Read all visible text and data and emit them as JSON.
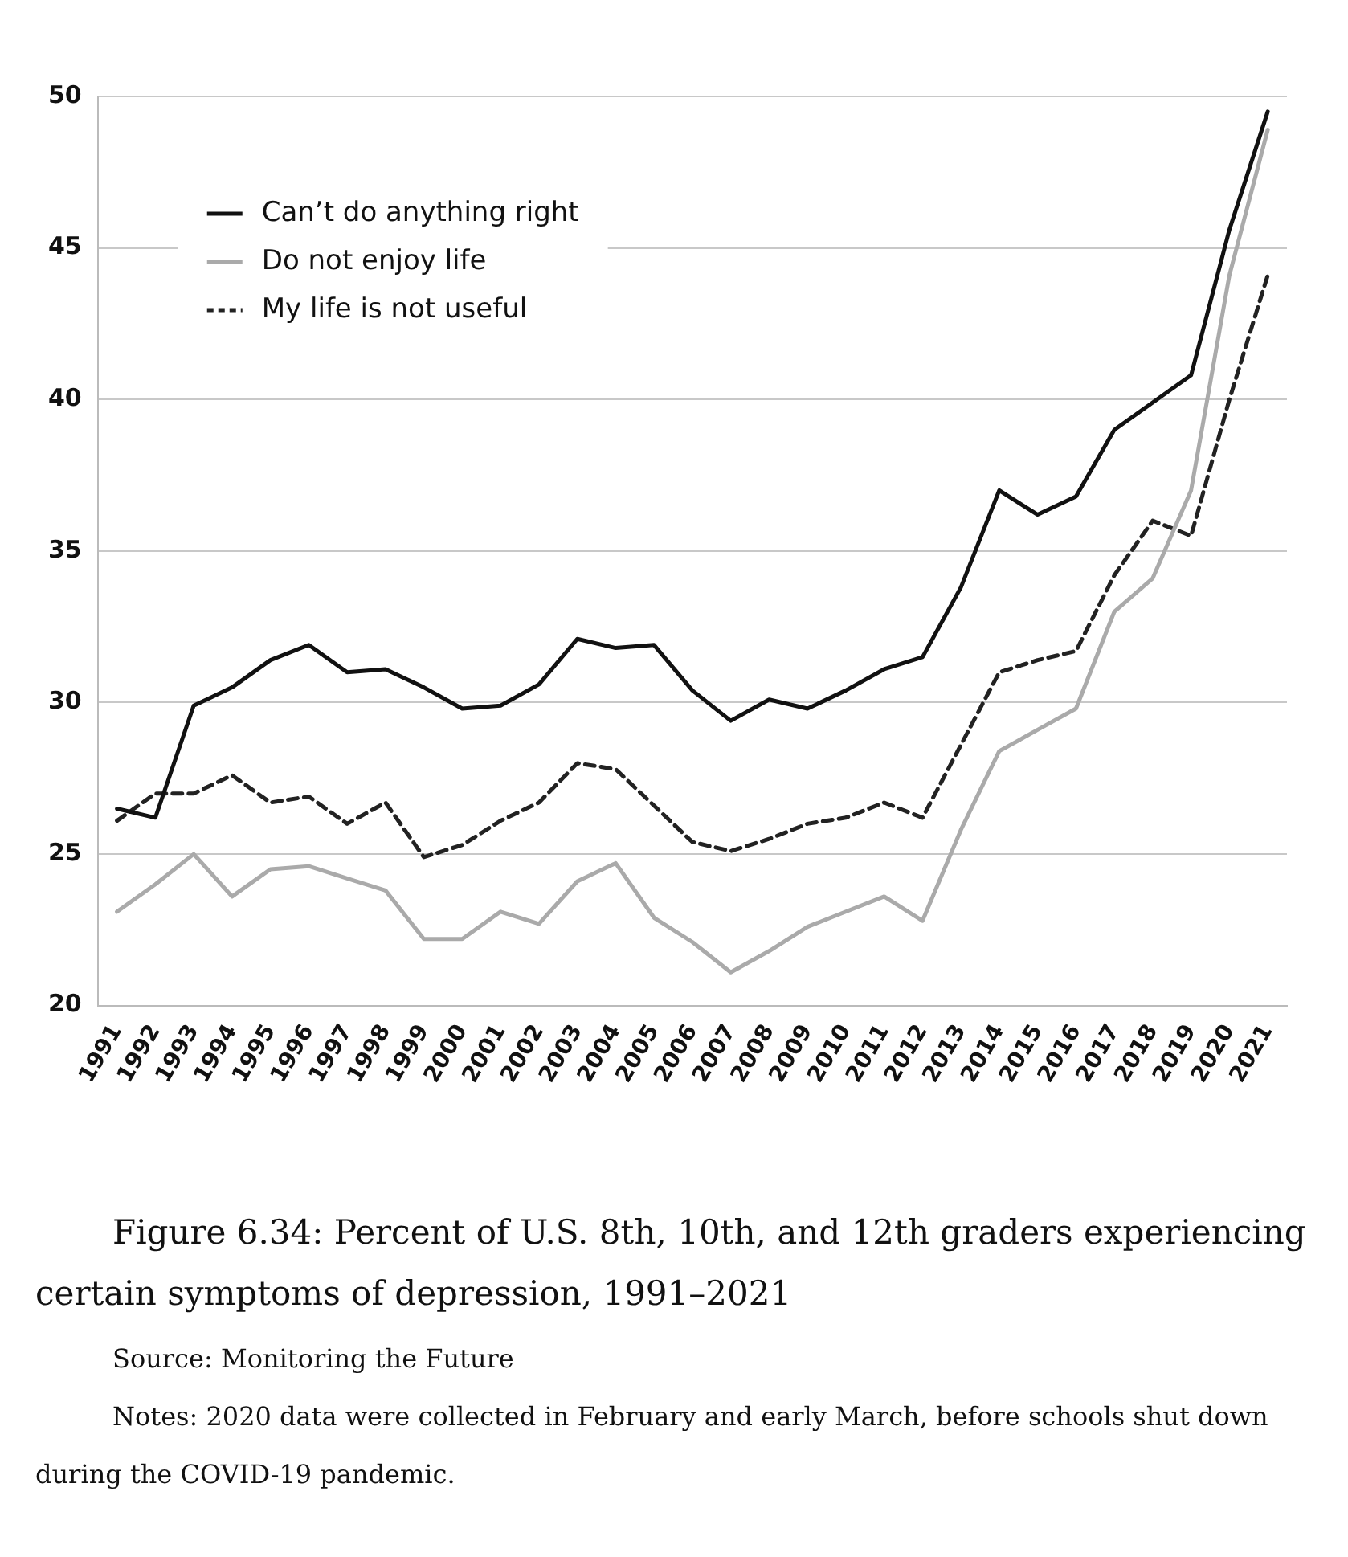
{
  "chart_data": {
    "type": "line",
    "title": "Figure 6.34: Percent of U.S. 8th, 10th, and 12th graders experiencing certain symptoms of depression, 1991–2021",
    "annotations": [
      "Source: Monitoring the Future",
      "Notes: 2020 data were collected in February and early March, before schools shut down during the COVID-19 pandemic."
    ],
    "categories": [
      "1991",
      "1992",
      "1993",
      "1994",
      "1995",
      "1996",
      "1997",
      "1998",
      "1999",
      "2000",
      "2001",
      "2002",
      "2003",
      "2004",
      "2005",
      "2006",
      "2007",
      "2008",
      "2009",
      "2010",
      "2011",
      "2012",
      "2013",
      "2014",
      "2015",
      "2016",
      "2017",
      "2018",
      "2019",
      "2020",
      "2021"
    ],
    "series": [
      {
        "name": "Can’t do anything right",
        "color": "#111111",
        "line_style": "solid",
        "values": [
          26.5,
          26.2,
          29.9,
          30.5,
          31.4,
          31.9,
          31.0,
          31.1,
          30.5,
          29.8,
          29.9,
          30.6,
          32.1,
          31.8,
          31.9,
          30.4,
          29.4,
          30.1,
          29.8,
          30.4,
          31.1,
          31.5,
          33.8,
          37.0,
          36.2,
          36.8,
          39.0,
          39.9,
          40.8,
          45.6,
          49.5
        ]
      },
      {
        "name": "Do not enjoy life",
        "color": "#aaaaaa",
        "line_style": "solid",
        "values": [
          23.1,
          24.0,
          25.0,
          23.6,
          24.5,
          24.6,
          24.2,
          23.8,
          22.2,
          22.2,
          23.1,
          22.7,
          24.1,
          24.7,
          22.9,
          22.1,
          21.1,
          21.8,
          22.6,
          23.1,
          23.6,
          22.8,
          25.8,
          28.4,
          29.1,
          29.8,
          33.0,
          34.1,
          37.0,
          44.1,
          48.9
        ]
      },
      {
        "name": "My life is not useful",
        "color": "#222222",
        "line_style": "dashed",
        "values": [
          26.1,
          27.0,
          27.0,
          27.6,
          26.7,
          26.9,
          26.0,
          26.7,
          24.9,
          25.3,
          26.1,
          26.7,
          28.0,
          27.8,
          26.6,
          25.4,
          25.1,
          25.5,
          26.0,
          26.2,
          26.7,
          26.2,
          28.6,
          31.0,
          31.4,
          31.7,
          34.2,
          36.0,
          35.5,
          40.0,
          44.1
        ]
      }
    ],
    "ylim": [
      20,
      50
    ],
    "yticks": [
      20,
      25,
      30,
      35,
      40,
      45,
      50
    ],
    "grid": "y",
    "legend": "top left",
    "marker": "none"
  }
}
